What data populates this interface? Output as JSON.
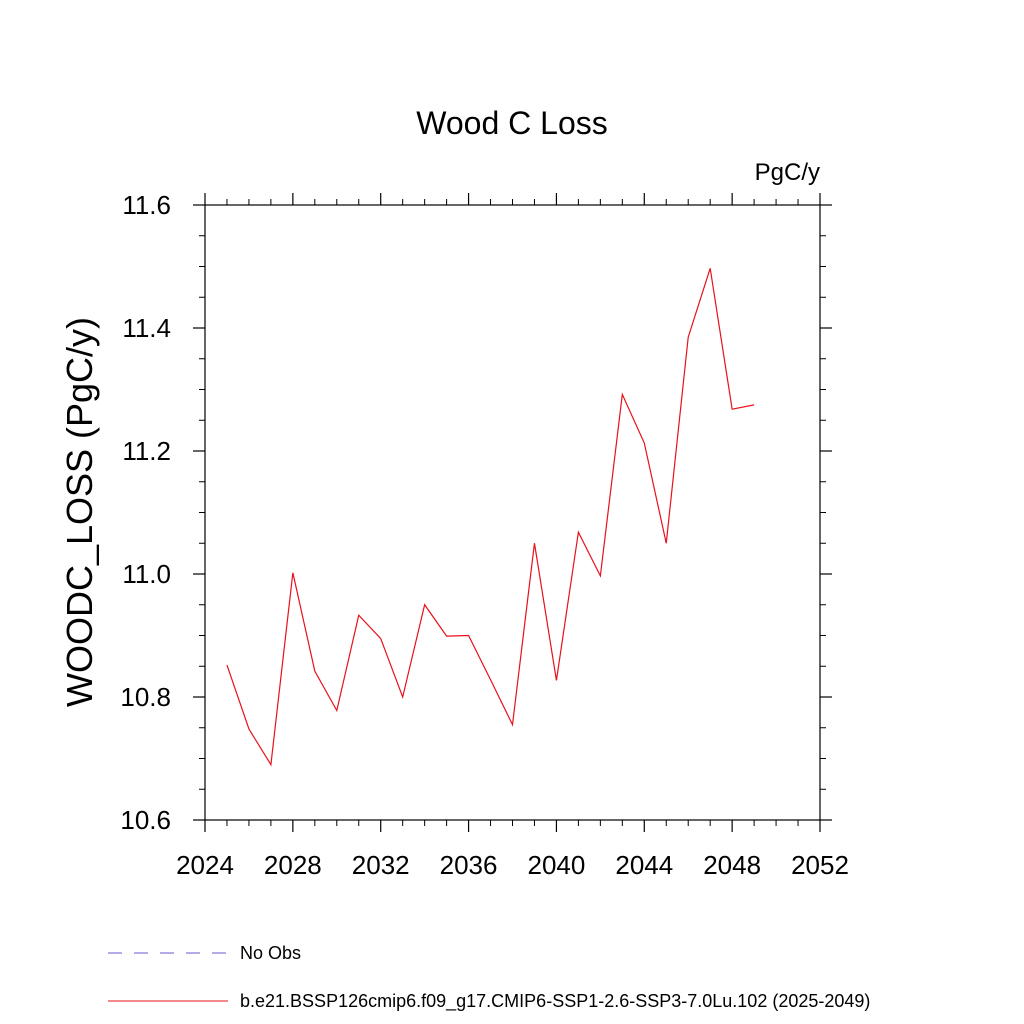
{
  "chart_data": {
    "type": "line",
    "title": "Wood C Loss",
    "units_label": "PgC/y",
    "xlabel": "",
    "ylabel": "WOODC_LOSS  (PgC/y)",
    "xlim": [
      2024,
      2052
    ],
    "ylim": [
      10.6,
      11.6
    ],
    "x_ticks": [
      2024,
      2028,
      2032,
      2036,
      2040,
      2044,
      2048,
      2052
    ],
    "x_tick_labels": [
      "2024",
      "2028",
      "2032",
      "2036",
      "2040",
      "2044",
      "2048",
      "2052"
    ],
    "y_ticks": [
      10.6,
      10.8,
      11.0,
      11.2,
      11.4,
      11.6
    ],
    "y_tick_labels": [
      "10.6",
      "10.8",
      "11.0",
      "11.2",
      "11.4",
      "11.6"
    ],
    "grid": false,
    "legend_position": "bottom",
    "series": [
      {
        "name": "b.e21.BSSP126cmip6.f09_g17.CMIP6-SSP1-2.6-SSP3-7.0Lu.102 (2025-2049)",
        "color": "#e8101a",
        "style": "solid",
        "x": [
          2025,
          2026,
          2027,
          2028,
          2029,
          2030,
          2031,
          2032,
          2033,
          2034,
          2035,
          2036,
          2037,
          2038,
          2039,
          2040,
          2041,
          2042,
          2043,
          2044,
          2045,
          2046,
          2047,
          2048,
          2049
        ],
        "values": [
          10.852,
          10.748,
          10.69,
          11.002,
          10.842,
          10.778,
          10.933,
          10.895,
          10.8,
          10.95,
          10.899,
          10.9,
          10.828,
          10.755,
          11.05,
          10.827,
          11.068,
          10.997,
          11.292,
          11.213,
          11.05,
          11.385,
          11.497,
          11.268,
          11.275
        ]
      }
    ],
    "legend": [
      {
        "name": "No Obs",
        "color": "#6a5acd",
        "style": "dashed"
      },
      {
        "name": "b.e21.BSSP126cmip6.f09_g17.CMIP6-SSP1-2.6-SSP3-7.0Lu.102 (2025-2049)",
        "color": "#e8101a",
        "style": "solid"
      }
    ]
  }
}
